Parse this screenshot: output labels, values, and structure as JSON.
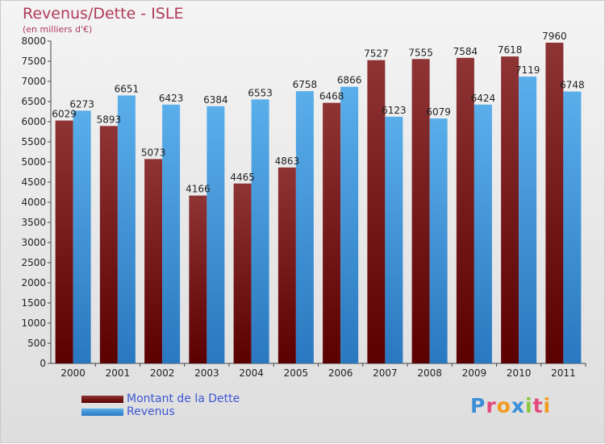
{
  "header": {
    "title": "Revenus/Dette - ISLE",
    "subtitle": "(en milliers d'€)"
  },
  "chart_data": {
    "type": "bar",
    "categories": [
      "2000",
      "2001",
      "2002",
      "2003",
      "2004",
      "2005",
      "2006",
      "2007",
      "2008",
      "2009",
      "2010",
      "2011"
    ],
    "series": [
      {
        "name": "Montant de la Dette",
        "color": "#6b1010",
        "values": [
          6029,
          5893,
          5073,
          4166,
          4465,
          4863,
          6468,
          7527,
          7555,
          7584,
          7618,
          7960
        ]
      },
      {
        "name": "Revenus",
        "color": "#3a8fd8",
        "values": [
          6273,
          6651,
          6423,
          6384,
          6553,
          6758,
          6866,
          6123,
          6079,
          6424,
          7119,
          6748
        ]
      }
    ],
    "ylim": [
      0,
      8000
    ],
    "ytick_step": 500,
    "grid": false,
    "legend": "bottom-left"
  },
  "legend": {
    "items": [
      {
        "label": "Montant de la Dette",
        "color": "#6b1010"
      },
      {
        "label": "Revenus",
        "color": "#3a8fd8"
      }
    ]
  },
  "logo": {
    "letters": [
      {
        "ch": "P",
        "color": "#3a8fd8"
      },
      {
        "ch": "r",
        "color": "#e34b7b"
      },
      {
        "ch": "o",
        "color": "#f29a1f"
      },
      {
        "ch": "x",
        "color": "#3a8fd8"
      },
      {
        "ch": "i",
        "color": "#8cc63f"
      },
      {
        "ch": "t",
        "color": "#e34b7b"
      },
      {
        "ch": "i",
        "color": "#f29a1f"
      }
    ]
  }
}
